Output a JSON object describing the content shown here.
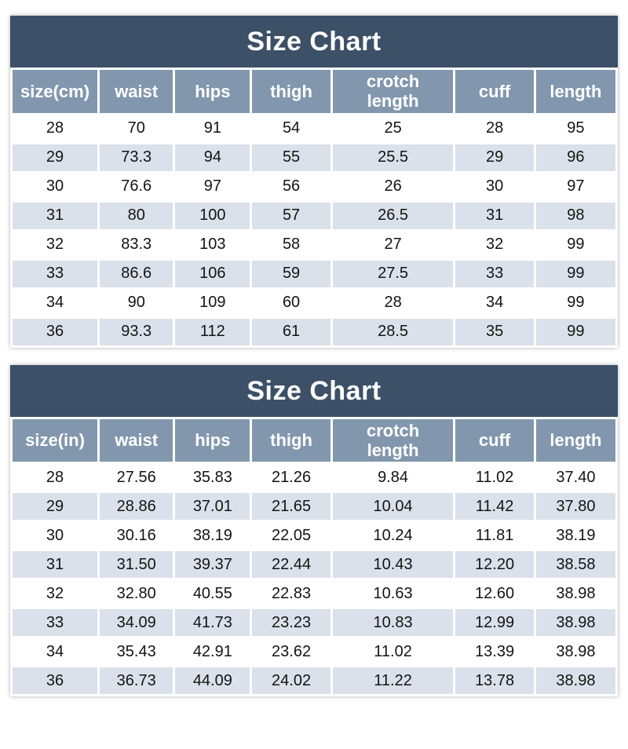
{
  "colors": {
    "title_bg": "#3c5068",
    "title_text": "#ffffff",
    "header_bg": "#8297ae",
    "header_text": "#ffffff",
    "row_bg": "#ffffff",
    "row_alt_bg": "#dbe1ea",
    "cell_text": "#141414",
    "divider": "#ffffff"
  },
  "chart_data": [
    {
      "type": "table",
      "title": "Size Chart",
      "columns": [
        "size(cm)",
        "waist",
        "hips",
        "thigh",
        "crotch\nlength",
        "cuff",
        "length"
      ],
      "rows": [
        [
          "28",
          "70",
          "91",
          "54",
          "25",
          "28",
          "95"
        ],
        [
          "29",
          "73.3",
          "94",
          "55",
          "25.5",
          "29",
          "96"
        ],
        [
          "30",
          "76.6",
          "97",
          "56",
          "26",
          "30",
          "97"
        ],
        [
          "31",
          "80",
          "100",
          "57",
          "26.5",
          "31",
          "98"
        ],
        [
          "32",
          "83.3",
          "103",
          "58",
          "27",
          "32",
          "99"
        ],
        [
          "33",
          "86.6",
          "106",
          "59",
          "27.5",
          "33",
          "99"
        ],
        [
          "34",
          "90",
          "109",
          "60",
          "28",
          "34",
          "99"
        ],
        [
          "36",
          "93.3",
          "112",
          "61",
          "28.5",
          "35",
          "99"
        ]
      ]
    },
    {
      "type": "table",
      "title": "Size Chart",
      "columns": [
        "size(in)",
        "waist",
        "hips",
        "thigh",
        "crotch\nlength",
        "cuff",
        "length"
      ],
      "rows": [
        [
          "28",
          "27.56",
          "35.83",
          "21.26",
          "9.84",
          "11.02",
          "37.40"
        ],
        [
          "29",
          "28.86",
          "37.01",
          "21.65",
          "10.04",
          "11.42",
          "37.80"
        ],
        [
          "30",
          "30.16",
          "38.19",
          "22.05",
          "10.24",
          "11.81",
          "38.19"
        ],
        [
          "31",
          "31.50",
          "39.37",
          "22.44",
          "10.43",
          "12.20",
          "38.58"
        ],
        [
          "32",
          "32.80",
          "40.55",
          "22.83",
          "10.63",
          "12.60",
          "38.98"
        ],
        [
          "33",
          "34.09",
          "41.73",
          "23.23",
          "10.83",
          "12.99",
          "38.98"
        ],
        [
          "34",
          "35.43",
          "42.91",
          "23.62",
          "11.02",
          "13.39",
          "38.98"
        ],
        [
          "36",
          "36.73",
          "44.09",
          "24.02",
          "11.22",
          "13.78",
          "38.98"
        ]
      ]
    }
  ]
}
